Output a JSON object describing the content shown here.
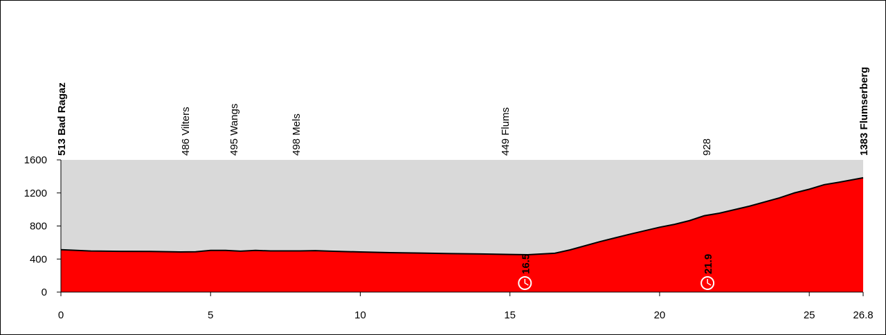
{
  "chart_data": {
    "type": "area",
    "x": [
      0,
      1,
      2,
      3,
      4,
      4.5,
      5,
      5.5,
      6,
      6.5,
      7,
      8,
      8.5,
      9,
      10,
      11,
      12,
      13,
      14,
      15,
      15.6,
      16.5,
      17,
      18,
      19,
      20,
      20.5,
      21,
      21.5,
      22,
      23,
      24,
      24.5,
      25,
      25.5,
      26,
      26.8
    ],
    "series": [
      {
        "color": "#ff0000",
        "values": [
          513,
          497,
          493,
          492,
          486,
          488,
          505,
          505,
          495,
          505,
          498,
          498,
          502,
          495,
          486,
          478,
          472,
          466,
          462,
          455,
          452,
          470,
          510,
          610,
          700,
          785,
          820,
          865,
          925,
          955,
          1040,
          1140,
          1200,
          1245,
          1300,
          1330,
          1383
        ]
      }
    ],
    "xlim": [
      0,
      26.8
    ],
    "ylim": [
      0,
      1600
    ],
    "xticks": [
      0,
      5,
      10,
      15,
      20,
      25,
      26.8
    ],
    "yticks": [
      0,
      400,
      800,
      1200,
      1600
    ],
    "waypoints": [
      {
        "x": 0,
        "label": "513 Bad Ragaz",
        "bold": true
      },
      {
        "x": 4.14,
        "label": "486 Vilters",
        "bold": false
      },
      {
        "x": 5.76,
        "label": "495 Wangs",
        "bold": false
      },
      {
        "x": 7.84,
        "label": "498 Mels",
        "bold": false
      },
      {
        "x": 14.82,
        "label": "449 Flums",
        "bold": false
      },
      {
        "x": 21.55,
        "label": "928",
        "bold": false
      },
      {
        "x": 26.8,
        "label": "1383 Flumserberg",
        "bold": true
      }
    ],
    "timechecks": [
      {
        "x": 15.5,
        "label": "16.5"
      },
      {
        "x": 21.6,
        "label": "21.9"
      }
    ]
  }
}
